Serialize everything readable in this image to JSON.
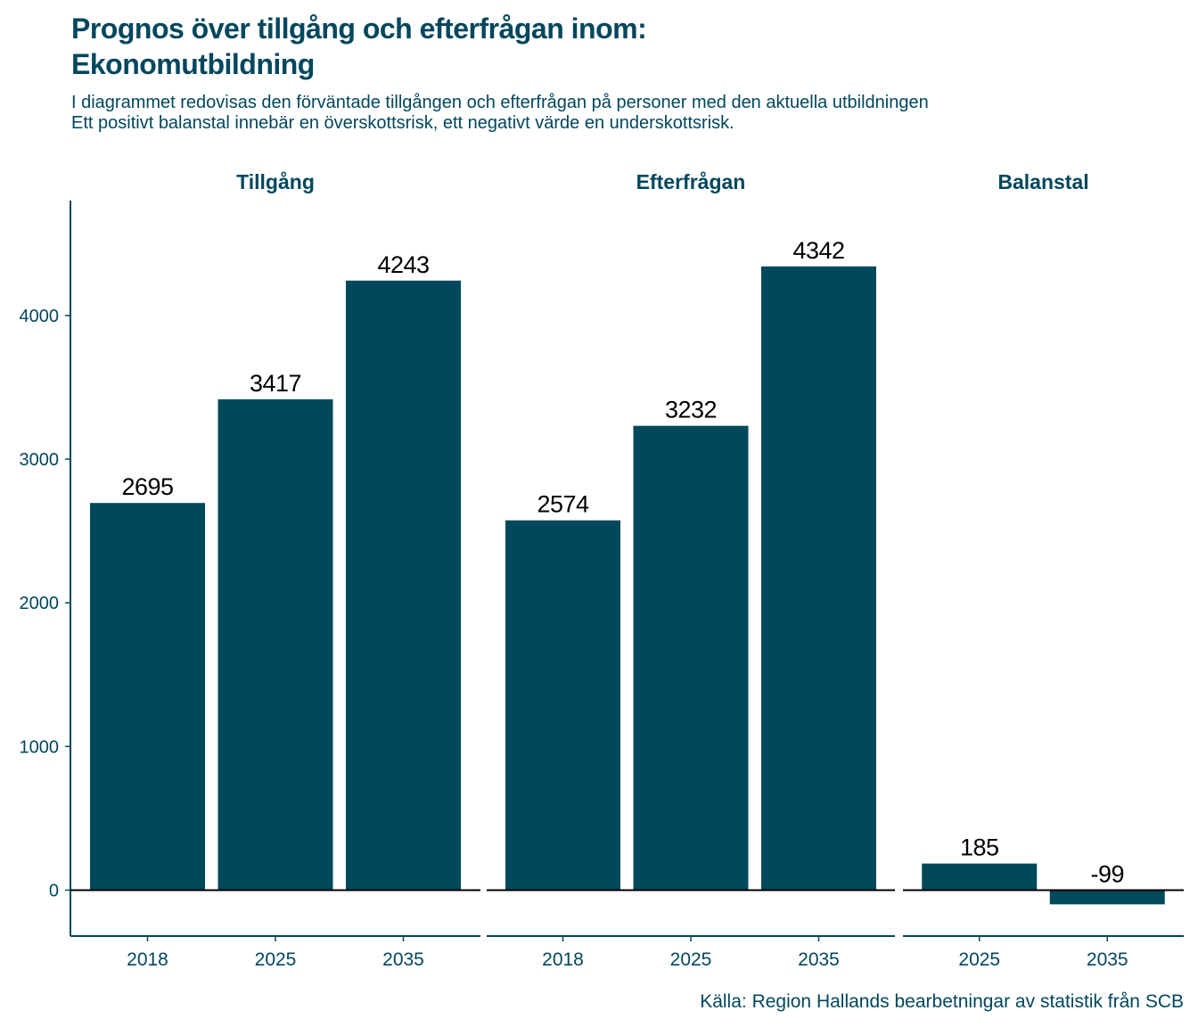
{
  "title_line1": "Prognos över tillgång och efterfrågan inom:",
  "title_line2": "Ekonomutbildning",
  "subtitle_line1": "I diagrammet redovisas den förväntade tillgången och efterfrågan på personer med den aktuella utbildningen",
  "subtitle_line2": "Ett positivt balanstal innebär en överskottsrisk, ett negativt värde en underskottsrisk.",
  "caption": "Källa: Region Hallands bearbetningar av statistik från SCB",
  "colors": {
    "bar": "#00495c",
    "text": "#00475d"
  },
  "chart_data": {
    "type": "bar",
    "ylim": [
      -320,
      4800
    ],
    "yticks": [
      0,
      1000,
      2000,
      3000,
      4000
    ],
    "grid": false,
    "panels": [
      {
        "name": "Tillgång",
        "categories": [
          "2018",
          "2025",
          "2035"
        ],
        "values": [
          2695,
          3417,
          4243
        ],
        "labels": [
          "2695",
          "3417",
          "4243"
        ]
      },
      {
        "name": "Efterfrågan",
        "categories": [
          "2018",
          "2025",
          "2035"
        ],
        "values": [
          2574,
          3232,
          4342
        ],
        "labels": [
          "2574",
          "3232",
          "4342"
        ]
      },
      {
        "name": "Balanstal",
        "categories": [
          "2025",
          "2035"
        ],
        "values": [
          185,
          -99
        ],
        "labels": [
          "185",
          "-99"
        ]
      }
    ]
  }
}
